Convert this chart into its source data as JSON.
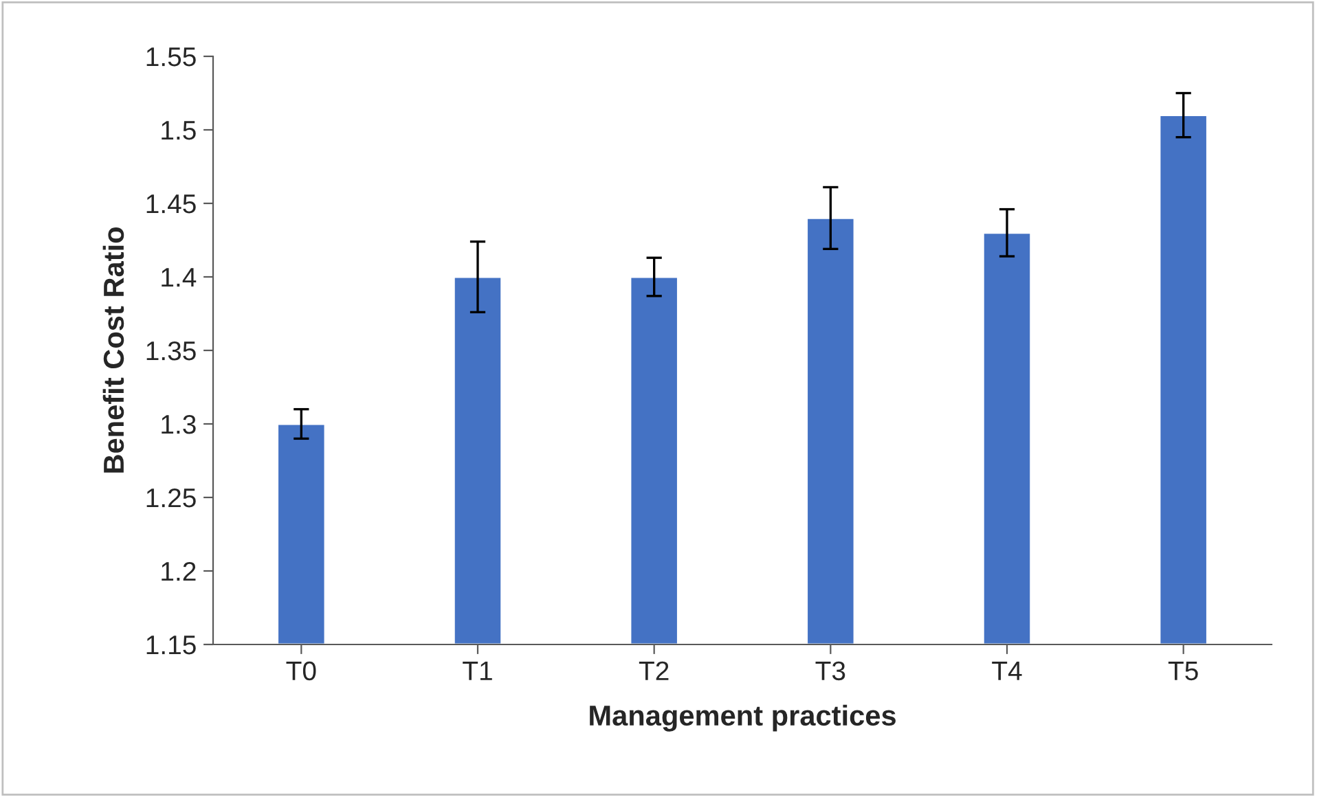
{
  "chart_data": {
    "type": "bar",
    "xlabel": "Management practices",
    "ylabel": "Benefit Cost Ratio",
    "categories": [
      "T0",
      "T1",
      "T2",
      "T3",
      "T4",
      "T5"
    ],
    "values": [
      1.3,
      1.4,
      1.4,
      1.44,
      1.43,
      1.51
    ],
    "errors": [
      0.01,
      0.024,
      0.013,
      0.021,
      0.016,
      0.015
    ],
    "color": "#4472c4",
    "ylim": [
      1.15,
      1.55
    ],
    "yticks": [
      1.15,
      1.2,
      1.25,
      1.3,
      1.35,
      1.4,
      1.45,
      1.5,
      1.55
    ],
    "grid": false,
    "legend": false
  }
}
